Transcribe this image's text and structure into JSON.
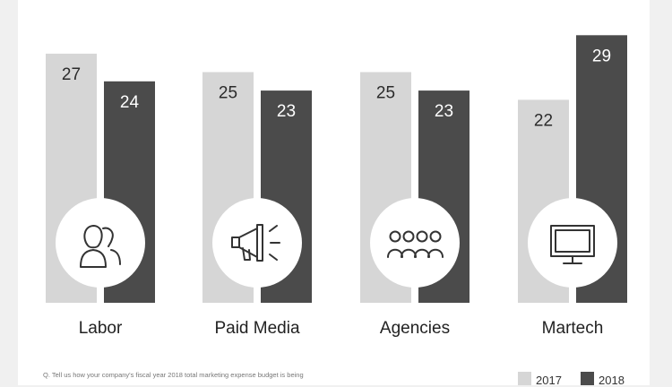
{
  "chart_data": {
    "type": "bar",
    "categories": [
      "Labor",
      "Paid Media",
      "Agencies",
      "Martech"
    ],
    "series": [
      {
        "name": "2017",
        "values": [
          27,
          25,
          25,
          22
        ]
      },
      {
        "name": "2018",
        "values": [
          24,
          23,
          23,
          29
        ]
      }
    ],
    "category_icons": [
      "people-icon",
      "megaphone-icon",
      "group-icon",
      "monitor-icon"
    ],
    "colors": {
      "2017": "#d6d6d6",
      "2018": "#4b4b4b",
      "background": "#f0f0f0",
      "panel": "#ffffff",
      "icon_circle": "#ffffff",
      "icon_stroke": "#333333"
    },
    "legend": {
      "position": "bottom-right",
      "items": [
        "2017",
        "2018"
      ]
    },
    "grid": false,
    "ylim": [
      0,
      30
    ]
  },
  "footnote": "Q. Tell us how your company's fiscal year 2018 total marketing expense budget is being"
}
